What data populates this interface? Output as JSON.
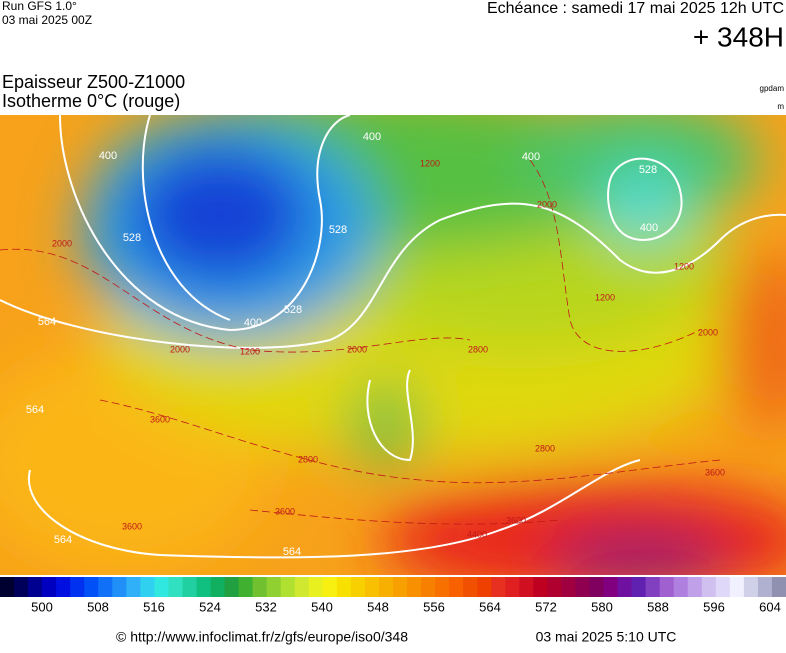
{
  "header": {
    "run": "Run GFS 1.0°",
    "run_date": "03 mai 2025 00Z",
    "echeance": "Echéance : samedi 17 mai 2025 12h UTC",
    "lead": "+ 348H"
  },
  "titles": {
    "line1": "Epaisseur Z500-Z1000",
    "line2": "Isotherme 0°C (rouge)",
    "unit1": "gpdam",
    "unit2": "m"
  },
  "map": {
    "thickness_labels": [
      "528",
      "400",
      "528",
      "528",
      "528",
      "564",
      "564",
      "564",
      "564",
      "400",
      "400",
      "400",
      "400"
    ],
    "isotherm_labels": [
      "2000",
      "2000",
      "2000",
      "2000",
      "2000",
      "1200",
      "1200",
      "1200",
      "1200",
      "2800",
      "2800",
      "2800",
      "3600",
      "3600",
      "3600",
      "3600",
      "4400",
      "3600"
    ]
  },
  "scale": {
    "labels": [
      500,
      508,
      516,
      524,
      532,
      540,
      548,
      556,
      564,
      572,
      580,
      588,
      596,
      604
    ]
  },
  "footer": {
    "url": "© http://www.infoclimat.fr/z/gfs/europe/iso0/348",
    "date": "03 mai 2025  5:10 UTC"
  }
}
